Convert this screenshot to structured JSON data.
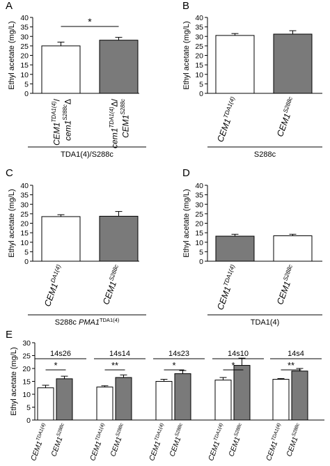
{
  "figure": {
    "ylabel": "Ethyl acetate (mg/L)",
    "colors": {
      "white_bar": "#ffffff",
      "grey_bar": "#7a7a7a",
      "stroke": "#000000"
    }
  },
  "chart_data": [
    {
      "panel": "A",
      "type": "bar",
      "ylabel": "Ethyl acetate (mg/L)",
      "ylim": [
        0,
        40
      ],
      "yticks": [
        0,
        5,
        10,
        15,
        20,
        25,
        30,
        35,
        40
      ],
      "group_label": "TDA1(4)/S288c",
      "bars": [
        {
          "label_line1": "CEM1",
          "label_sup1": "TDA1(4)",
          "label_tail1": "/",
          "label_line2": "cem1",
          "label_sup2": "S288c",
          "label_tail2": "Δ",
          "value": 25,
          "error": 2,
          "fill": "white"
        },
        {
          "label_line1": "cem1",
          "label_sup1": "TDA1(4)",
          "label_tail1": "Δ/",
          "label_line2": "CEM1",
          "label_sup2": "S288c",
          "label_tail2": "",
          "value": 28,
          "error": 1.5,
          "fill": "grey"
        }
      ],
      "significance": "*"
    },
    {
      "panel": "B",
      "type": "bar",
      "ylabel": "Ethyl acetate (mg/L)",
      "ylim": [
        0,
        40
      ],
      "yticks": [
        0,
        5,
        10,
        15,
        20,
        25,
        30,
        35,
        40
      ],
      "group_label": "S288c",
      "bars": [
        {
          "label": "CEM1",
          "label_sup": "TDA1(4)",
          "value": 30.5,
          "error": 1,
          "fill": "white"
        },
        {
          "label": "CEM1",
          "label_sup": "S288c",
          "value": 31.2,
          "error": 1.8,
          "fill": "grey"
        }
      ],
      "significance": ""
    },
    {
      "panel": "C",
      "type": "bar",
      "ylabel": "Ethyl acetate (mg/L)",
      "ylim": [
        0,
        40
      ],
      "yticks": [
        0,
        5,
        10,
        15,
        20,
        25,
        30,
        35,
        40
      ],
      "group_label": "S288c",
      "group_label_italic": "PMA1",
      "group_label_sup": "TDA1(4)",
      "bars": [
        {
          "label": "CEM1",
          "label_sup": "DA1(4)",
          "value": 23.5,
          "error": 1,
          "fill": "white"
        },
        {
          "label": "CEM1",
          "label_sup": "S288c",
          "value": 23.7,
          "error": 2.5,
          "fill": "grey"
        }
      ],
      "significance": ""
    },
    {
      "panel": "D",
      "type": "bar",
      "ylabel": "Ethyl acetate (mg/L)",
      "ylim": [
        0,
        40
      ],
      "yticks": [
        0,
        5,
        10,
        15,
        20,
        25,
        30,
        35,
        40
      ],
      "group_label": "TDA1(4)",
      "bars": [
        {
          "label": "CEM1",
          "label_sup": "TDA1(4)",
          "value": 13.2,
          "error": 1,
          "fill": "grey"
        },
        {
          "label": "CEM1",
          "label_sup": "S288c",
          "value": 13.4,
          "error": 0.8,
          "fill": "white"
        }
      ],
      "significance": ""
    },
    {
      "panel": "E",
      "type": "bar",
      "ylabel": "Ethyl acetate (mg/L)",
      "ylim": [
        0,
        30
      ],
      "yticks": [
        0,
        5,
        10,
        15,
        20,
        25,
        30
      ],
      "groups": [
        {
          "name": "14s26",
          "significance": "*",
          "values": [
            12.5,
            16
          ],
          "errors": [
            1,
            1
          ]
        },
        {
          "name": "14s14",
          "significance": "**",
          "values": [
            12.8,
            16.5
          ],
          "errors": [
            0.5,
            1
          ]
        },
        {
          "name": "14s23",
          "significance": "*",
          "values": [
            15,
            18
          ],
          "errors": [
            0.8,
            1.2
          ]
        },
        {
          "name": "14s10",
          "significance": "*",
          "values": [
            15.5,
            21.2
          ],
          "errors": [
            1,
            2.8
          ]
        },
        {
          "name": "14s4",
          "significance": "**",
          "values": [
            15.8,
            19
          ],
          "errors": [
            0.3,
            1
          ]
        }
      ],
      "bar_labels": [
        {
          "label": "CEM1",
          "label_sup": "TDA1(4)",
          "fill": "white"
        },
        {
          "label": "CEM1",
          "label_sup": "S288c",
          "fill": "grey"
        }
      ]
    }
  ]
}
